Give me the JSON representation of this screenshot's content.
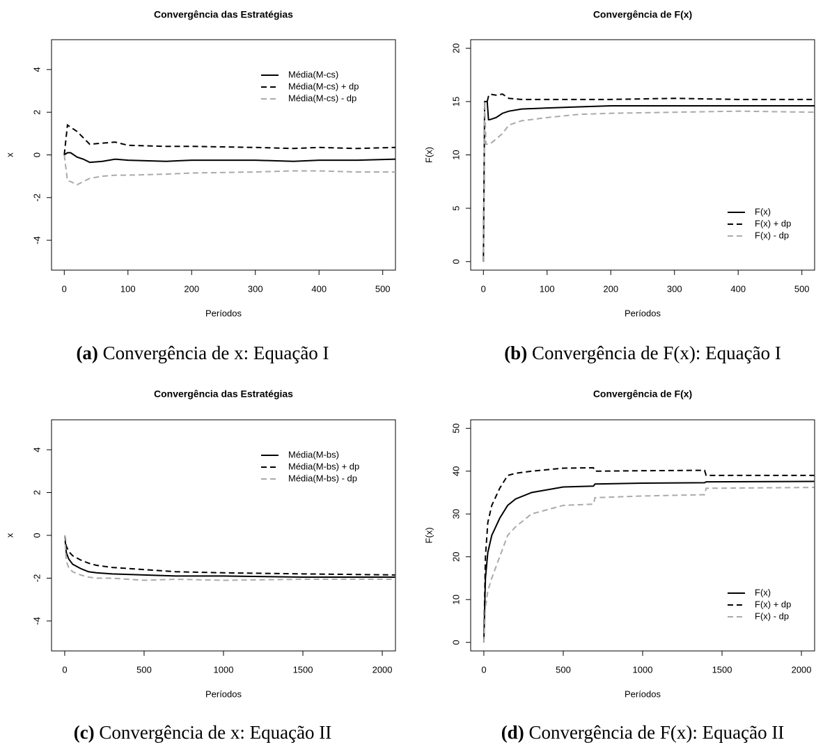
{
  "chart_data": [
    {
      "type": "line",
      "title": "Convergência das Estratégias",
      "xlabel": "Períodos",
      "ylabel": "x",
      "caption": {
        "tag": "(a)",
        "text": "Convergência de x: Equação I"
      },
      "x": [
        0,
        5,
        10,
        20,
        30,
        40,
        60,
        80,
        100,
        160,
        200,
        300,
        360,
        400,
        460,
        520
      ],
      "xlim": [
        -20,
        520
      ],
      "xticks": [
        0,
        100,
        200,
        300,
        400,
        500
      ],
      "ylim": [
        -5.4,
        5.4
      ],
      "yticks": [
        -4,
        -2,
        0,
        2,
        4
      ],
      "legend": "topright",
      "series": [
        {
          "name": "Média(M-cs)",
          "color": "#000000",
          "style": "solid",
          "values": [
            0,
            0.1,
            0.1,
            -0.1,
            -0.2,
            -0.35,
            -0.3,
            -0.2,
            -0.25,
            -0.3,
            -0.25,
            -0.25,
            -0.3,
            -0.25,
            -0.25,
            -0.2
          ]
        },
        {
          "name": "Média(M-cs) + dp",
          "color": "#000000",
          "style": "dashed",
          "values": [
            0,
            1.4,
            1.3,
            1.1,
            0.8,
            0.5,
            0.55,
            0.6,
            0.45,
            0.4,
            0.4,
            0.35,
            0.3,
            0.35,
            0.3,
            0.35
          ]
        },
        {
          "name": "Média(M-cs) - dp",
          "color": "#aaaaaa",
          "style": "dashed",
          "values": [
            0,
            -1.2,
            -1.25,
            -1.4,
            -1.25,
            -1.1,
            -1.0,
            -0.95,
            -0.95,
            -0.9,
            -0.85,
            -0.8,
            -0.75,
            -0.75,
            -0.8,
            -0.8
          ]
        }
      ]
    },
    {
      "type": "line",
      "title": "Convergência de F(x)",
      "xlabel": "Períodos",
      "ylabel": "F(x)",
      "caption": {
        "tag": "(b)",
        "text": "Convergência de F(x): Equação I"
      },
      "x": [
        0,
        2,
        4,
        6,
        8,
        10,
        20,
        30,
        40,
        60,
        100,
        150,
        200,
        300,
        400,
        520
      ],
      "xlim": [
        -20,
        520
      ],
      "xticks": [
        0,
        100,
        200,
        300,
        400,
        500
      ],
      "ylim": [
        -0.8,
        20.8
      ],
      "yticks": [
        0,
        5,
        10,
        15,
        20
      ],
      "legend": "bottomright",
      "series": [
        {
          "name": "F(x)",
          "color": "#000000",
          "style": "solid",
          "values": [
            0,
            15,
            15,
            15,
            13.3,
            13.3,
            13.5,
            13.9,
            14.1,
            14.3,
            14.4,
            14.5,
            14.6,
            14.6,
            14.6,
            14.6
          ]
        },
        {
          "name": "F(x) + dp",
          "color": "#000000",
          "style": "dashed",
          "values": [
            0,
            15,
            15,
            15,
            15.5,
            15.7,
            15.6,
            15.7,
            15.3,
            15.2,
            15.2,
            15.2,
            15.2,
            15.3,
            15.2,
            15.2
          ]
        },
        {
          "name": "F(x) - dp",
          "color": "#aaaaaa",
          "style": "dashed",
          "values": [
            0,
            15,
            11,
            11,
            11,
            11,
            11.5,
            12,
            12.8,
            13.2,
            13.5,
            13.8,
            13.9,
            14.0,
            14.1,
            14.0
          ]
        }
      ]
    },
    {
      "type": "line",
      "title": "Convergência das Estratégias",
      "xlabel": "Períodos",
      "ylabel": "x",
      "caption": {
        "tag": "(c)",
        "text": "Convergência de x: Equação II"
      },
      "x": [
        0,
        10,
        25,
        50,
        100,
        150,
        200,
        300,
        500,
        700,
        1000,
        1500,
        2080
      ],
      "xlim": [
        -83,
        2083
      ],
      "xticks": [
        0,
        500,
        1000,
        1500,
        2000
      ],
      "ylim": [
        -5.4,
        5.4
      ],
      "yticks": [
        -4,
        -2,
        0,
        2,
        4
      ],
      "legend": "topright",
      "series": [
        {
          "name": "Média(M-bs)",
          "color": "#000000",
          "style": "solid",
          "values": [
            0,
            -0.8,
            -1.1,
            -1.35,
            -1.55,
            -1.7,
            -1.75,
            -1.8,
            -1.85,
            -1.9,
            -1.9,
            -1.95,
            -1.95
          ]
        },
        {
          "name": "Média(M-bs) + dp",
          "color": "#000000",
          "style": "dashed",
          "values": [
            0,
            -0.5,
            -0.75,
            -0.95,
            -1.15,
            -1.3,
            -1.4,
            -1.5,
            -1.6,
            -1.7,
            -1.75,
            -1.8,
            -1.85
          ]
        },
        {
          "name": "Média(M-bs) - dp",
          "color": "#aaaaaa",
          "style": "dashed",
          "values": [
            0,
            -1.2,
            -1.5,
            -1.7,
            -1.85,
            -1.95,
            -2.0,
            -2.0,
            -2.1,
            -2.05,
            -2.1,
            -2.05,
            -2.05
          ]
        }
      ]
    },
    {
      "type": "line",
      "title": "Convergência de F(x)",
      "xlabel": "Períodos",
      "ylabel": "F(x)",
      "caption": {
        "tag": "(d)",
        "text": "Convergência de F(x): Equação II"
      },
      "x": [
        0,
        10,
        25,
        50,
        100,
        150,
        200,
        300,
        500,
        690,
        700,
        1000,
        1390,
        1400,
        2080
      ],
      "xlim": [
        -83,
        2083
      ],
      "xticks": [
        0,
        500,
        1000,
        1500,
        2000
      ],
      "ylim": [
        -2,
        52
      ],
      "yticks": [
        0,
        10,
        20,
        30,
        40,
        50
      ],
      "legend": "bottomright",
      "series": [
        {
          "name": "F(x)",
          "color": "#000000",
          "style": "solid",
          "values": [
            0,
            15,
            21,
            25,
            29,
            32,
            33.5,
            35,
            36.3,
            36.5,
            37,
            37.2,
            37.3,
            37.5,
            37.6
          ]
        },
        {
          "name": "F(x) + dp",
          "color": "#000000",
          "style": "dashed",
          "values": [
            0,
            20,
            28,
            32,
            36,
            39,
            39.5,
            40,
            40.7,
            40.8,
            40,
            40.1,
            40.2,
            39,
            39
          ]
        },
        {
          "name": "F(x) - dp",
          "color": "#aaaaaa",
          "style": "dashed",
          "values": [
            0,
            8,
            12,
            15,
            20,
            25,
            27,
            30,
            32,
            32.3,
            33.8,
            34.2,
            34.5,
            36,
            36.2
          ]
        }
      ]
    }
  ]
}
